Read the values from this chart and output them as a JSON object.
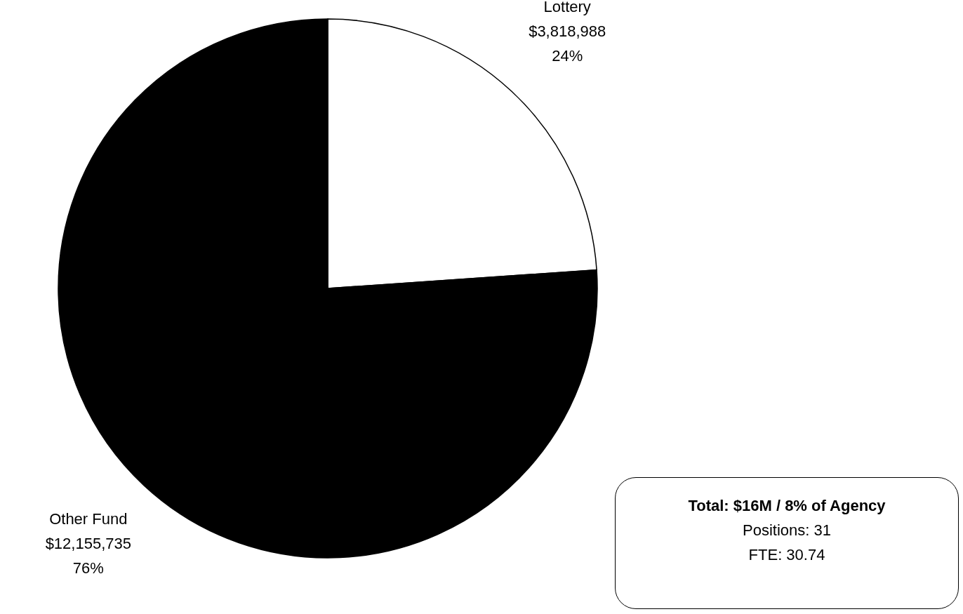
{
  "chart_data": {
    "type": "pie",
    "categories": [
      "Lottery",
      "Other Fund"
    ],
    "values": [
      3818988,
      12155735
    ],
    "colors": [
      "#ffffff",
      "#000000"
    ],
    "value_labels": [
      "$3,818,988\n24%",
      "$12,155,735\n76%"
    ],
    "annotations": [
      "Total: $16M / 8% of Agency",
      "Positions: 31",
      "FTE: 30.74"
    ]
  }
}
